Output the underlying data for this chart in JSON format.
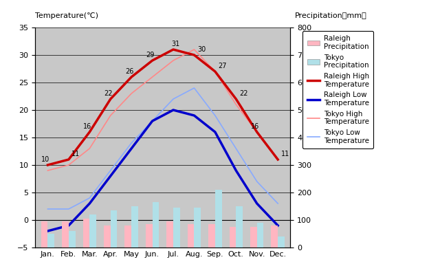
{
  "months": [
    "Jan.",
    "Feb.",
    "Mar.",
    "Apr.",
    "May",
    "Jun.",
    "Jul.",
    "Aug.",
    "Sep.",
    "Oct.",
    "Nov.",
    "Dec."
  ],
  "month_x": [
    0,
    1,
    2,
    3,
    4,
    5,
    6,
    7,
    8,
    9,
    10,
    11
  ],
  "raleigh_high": [
    10,
    11,
    16,
    22,
    26,
    29,
    31,
    30,
    27,
    22,
    16,
    11
  ],
  "raleigh_low": [
    -2,
    -1,
    3,
    8,
    13,
    18,
    20,
    19,
    16,
    9,
    3,
    -1
  ],
  "tokyo_high": [
    9,
    10,
    13,
    19,
    23,
    26,
    29,
    31,
    27,
    21,
    16,
    11
  ],
  "tokyo_low": [
    2,
    2,
    4,
    9,
    14,
    18,
    22,
    24,
    19,
    13,
    7,
    3
  ],
  "raleigh_precip_mm": [
    95,
    95,
    105,
    80,
    80,
    85,
    95,
    85,
    85,
    75,
    75,
    80
  ],
  "tokyo_precip_mm": [
    50,
    60,
    120,
    135,
    150,
    165,
    145,
    145,
    210,
    150,
    90,
    40
  ],
  "bg_color": "#c8c8c8",
  "raleigh_precip_color": "#ffb6c1",
  "tokyo_precip_color": "#b0e0e8",
  "raleigh_high_color": "#cc0000",
  "raleigh_low_color": "#0000cc",
  "tokyo_high_color": "#ff8888",
  "tokyo_low_color": "#88aaff",
  "title_left": "Temperature(℃)",
  "title_right": "Precipitation（mm）",
  "ylim_left": [
    -5,
    35
  ],
  "ylim_right": [
    0,
    800
  ],
  "yticks_left": [
    -5,
    0,
    5,
    10,
    15,
    20,
    25,
    30,
    35
  ],
  "yticks_right": [
    0,
    100,
    200,
    300,
    400,
    500,
    600,
    700,
    800
  ],
  "fig_width": 6.4,
  "fig_height": 4.0,
  "dpi": 100
}
